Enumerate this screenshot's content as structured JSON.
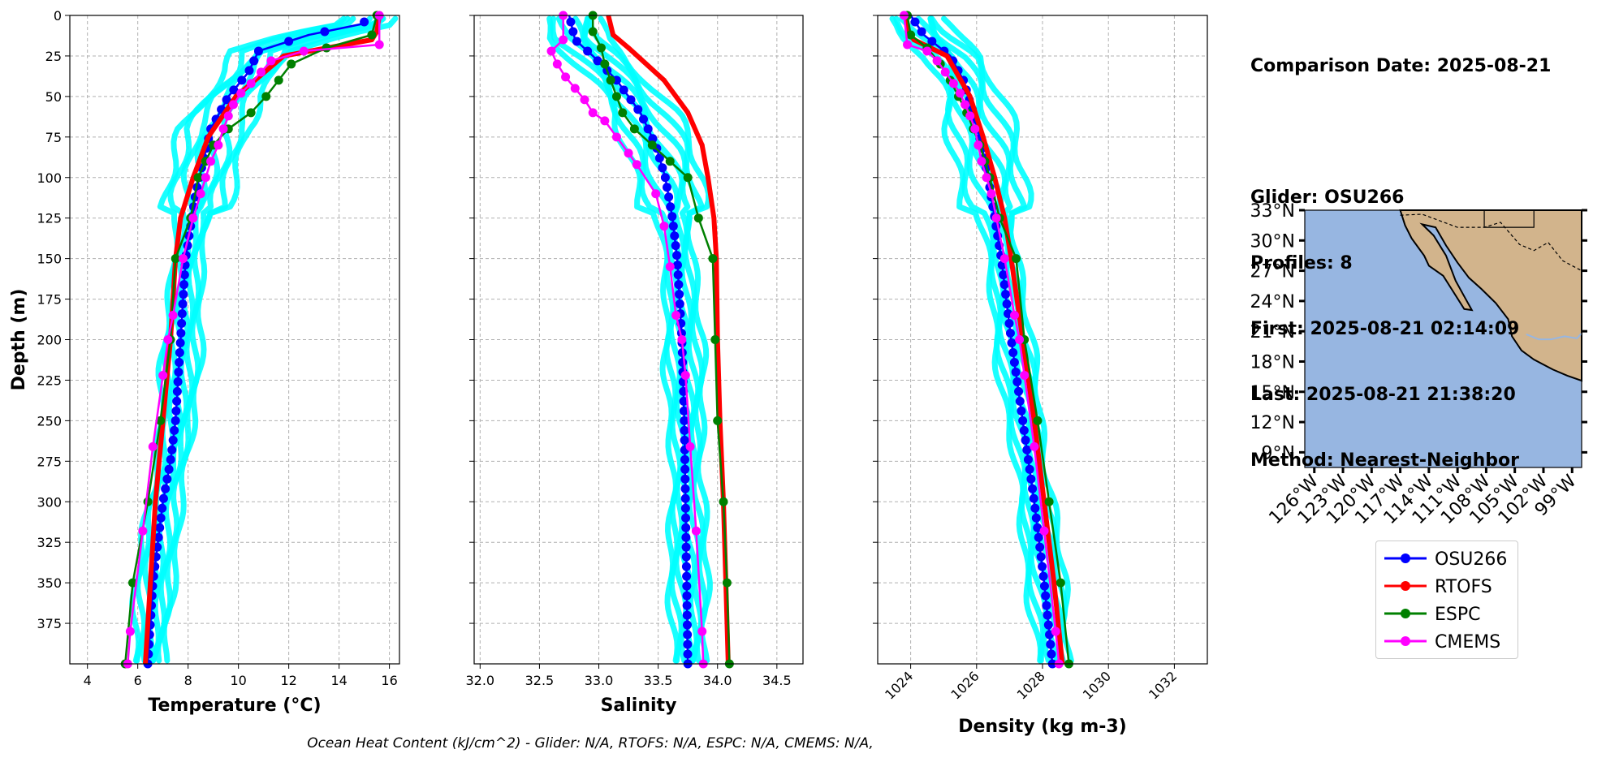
{
  "chart_data": [
    {
      "type": "line",
      "xlabel": "Temperature (°C)",
      "ylabel": "Depth (m)",
      "xlim": [
        3.3,
        16.4
      ],
      "ylim": [
        400,
        0
      ],
      "xticks": [
        "4",
        "6",
        "8",
        "10",
        "12",
        "14",
        "16"
      ],
      "yticks": [
        "0",
        "25",
        "50",
        "75",
        "100",
        "125",
        "150",
        "175",
        "200",
        "225",
        "250",
        "275",
        "300",
        "325",
        "350",
        "375"
      ],
      "series": [
        {
          "name": "OSU266",
          "color": "#0000ff",
          "depth": [
            5,
            12,
            22,
            35,
            50,
            70,
            90,
            110,
            130,
            150,
            175,
            200,
            225,
            250,
            275,
            300,
            325,
            350,
            375,
            400
          ],
          "values": [
            15.0,
            12.8,
            10.8,
            10.4,
            9.6,
            8.9,
            8.6,
            8.3,
            8.1,
            7.9,
            7.8,
            7.7,
            7.6,
            7.5,
            7.3,
            7.0,
            6.8,
            6.6,
            6.5,
            6.4
          ]
        },
        {
          "name": "RTOFS",
          "color": "#ff0000",
          "depth": [
            0,
            10,
            15,
            25,
            50,
            75,
            100,
            125,
            150,
            200,
            250,
            300,
            350,
            400
          ],
          "values": [
            15.6,
            15.5,
            15.3,
            11.8,
            9.9,
            8.8,
            8.2,
            7.7,
            7.5,
            7.3,
            7.0,
            6.7,
            6.5,
            6.3
          ]
        },
        {
          "name": "ESPC",
          "color": "#008000",
          "depth": [
            0,
            12,
            20,
            30,
            40,
            50,
            60,
            70,
            80,
            90,
            100,
            125,
            150,
            200,
            250,
            300,
            350,
            400
          ],
          "values": [
            15.5,
            15.3,
            13.5,
            12.1,
            11.6,
            11.1,
            10.5,
            9.6,
            9.0,
            8.7,
            8.4,
            8.1,
            7.5,
            7.3,
            6.9,
            6.4,
            5.8,
            5.5
          ]
        },
        {
          "name": "CMEMS",
          "color": "#ff00ff",
          "depth": [
            0,
            18,
            22,
            28,
            35,
            42,
            48,
            55,
            62,
            70,
            80,
            90,
            100,
            110,
            125,
            150,
            185,
            200,
            222,
            266,
            318,
            380,
            400
          ],
          "values": [
            15.6,
            15.6,
            12.6,
            11.3,
            10.9,
            10.5,
            10.1,
            9.8,
            9.6,
            9.4,
            9.2,
            8.9,
            8.7,
            8.5,
            8.2,
            7.8,
            7.4,
            7.2,
            7.0,
            6.6,
            6.2,
            5.7,
            5.6
          ]
        }
      ]
    },
    {
      "type": "line",
      "xlabel": "Salinity",
      "ylabel": "",
      "xlim": [
        31.95,
        34.72
      ],
      "ylim": [
        400,
        0
      ],
      "xticks": [
        "32.0",
        "32.5",
        "33.0",
        "33.5",
        "34.0",
        "34.5"
      ],
      "series": [
        {
          "name": "OSU266",
          "color": "#0000ff",
          "depth": [
            0,
            15,
            25,
            40,
            60,
            80,
            100,
            125,
            150,
            200,
            250,
            300,
            350,
            400
          ],
          "values": [
            32.75,
            32.8,
            32.95,
            33.15,
            33.35,
            33.48,
            33.56,
            33.62,
            33.66,
            33.7,
            33.72,
            33.73,
            33.74,
            33.75
          ]
        },
        {
          "name": "RTOFS",
          "color": "#ff0000",
          "depth": [
            0,
            12,
            20,
            40,
            60,
            80,
            100,
            125,
            150,
            200,
            250,
            300,
            350,
            400
          ],
          "values": [
            33.08,
            33.12,
            33.25,
            33.55,
            33.75,
            33.87,
            33.92,
            33.97,
            33.99,
            34.0,
            34.02,
            34.05,
            34.07,
            34.09
          ]
        },
        {
          "name": "ESPC",
          "color": "#008000",
          "depth": [
            0,
            10,
            20,
            30,
            40,
            50,
            60,
            70,
            80,
            90,
            100,
            125,
            150,
            200,
            250,
            300,
            350,
            400
          ],
          "values": [
            32.95,
            32.95,
            33.02,
            33.05,
            33.1,
            33.15,
            33.2,
            33.3,
            33.45,
            33.6,
            33.75,
            33.84,
            33.96,
            33.98,
            34.0,
            34.05,
            34.08,
            34.1
          ]
        },
        {
          "name": "CMEMS",
          "color": "#ff00ff",
          "depth": [
            0,
            15,
            22,
            30,
            38,
            45,
            52,
            60,
            65,
            75,
            85,
            92,
            110,
            130,
            155,
            185,
            200,
            222,
            266,
            318,
            380,
            400
          ],
          "values": [
            32.7,
            32.7,
            32.6,
            32.65,
            32.72,
            32.8,
            32.88,
            32.95,
            33.05,
            33.15,
            33.25,
            33.32,
            33.48,
            33.55,
            33.6,
            33.65,
            33.7,
            33.73,
            33.77,
            33.82,
            33.87,
            33.88
          ]
        }
      ]
    },
    {
      "type": "line",
      "xlabel": "Density (kg m-3)",
      "ylabel": "",
      "xlim": [
        1023.0,
        1033.0
      ],
      "ylim": [
        400,
        0
      ],
      "xticks": [
        "1024",
        "1026",
        "1028",
        "1030",
        "1032"
      ],
      "series": [
        {
          "name": "OSU266",
          "color": "#0000ff",
          "depth": [
            0,
            12,
            25,
            40,
            60,
            80,
            100,
            125,
            150,
            175,
            200,
            250,
            300,
            350,
            400
          ],
          "values": [
            1024.0,
            1024.4,
            1025.2,
            1025.6,
            1025.9,
            1026.15,
            1026.35,
            1026.55,
            1026.75,
            1026.9,
            1027.05,
            1027.4,
            1027.75,
            1028.05,
            1028.3
          ]
        },
        {
          "name": "RTOFS",
          "color": "#ff0000",
          "depth": [
            0,
            10,
            15,
            25,
            50,
            75,
            100,
            125,
            150,
            200,
            250,
            300,
            350,
            400
          ],
          "values": [
            1023.85,
            1023.9,
            1024.1,
            1025.1,
            1025.8,
            1026.2,
            1026.55,
            1026.85,
            1027.05,
            1027.4,
            1027.75,
            1028.05,
            1028.35,
            1028.6
          ]
        },
        {
          "name": "ESPC",
          "color": "#008000",
          "depth": [
            0,
            12,
            20,
            30,
            40,
            50,
            60,
            70,
            80,
            90,
            100,
            125,
            150,
            200,
            250,
            300,
            350,
            400
          ],
          "values": [
            1023.9,
            1024.0,
            1024.5,
            1024.9,
            1025.2,
            1025.45,
            1025.7,
            1025.9,
            1026.1,
            1026.25,
            1026.4,
            1026.7,
            1027.2,
            1027.45,
            1027.85,
            1028.2,
            1028.55,
            1028.8
          ]
        },
        {
          "name": "CMEMS",
          "color": "#ff00ff",
          "depth": [
            0,
            18,
            22,
            28,
            35,
            42,
            48,
            55,
            62,
            70,
            80,
            90,
            100,
            110,
            125,
            150,
            185,
            200,
            222,
            266,
            318,
            380,
            400
          ],
          "values": [
            1023.8,
            1023.9,
            1024.5,
            1024.8,
            1025.05,
            1025.3,
            1025.5,
            1025.65,
            1025.8,
            1025.95,
            1026.05,
            1026.15,
            1026.3,
            1026.45,
            1026.6,
            1026.85,
            1027.15,
            1027.3,
            1027.45,
            1027.75,
            1028.05,
            1028.4,
            1028.5
          ]
        }
      ]
    },
    {
      "type": "map",
      "lat_ticks": [
        "33°N",
        "30°N",
        "27°N",
        "24°N",
        "21°N",
        "18°N",
        "15°N",
        "12°N",
        "9°N"
      ],
      "lon_ticks": [
        "126°W",
        "123°W",
        "120°W",
        "117°W",
        "114°W",
        "111°W",
        "108°W",
        "105°W",
        "102°W",
        "99°W"
      ],
      "lat_range": [
        7.5,
        33
      ],
      "lon_range": [
        -127,
        -98
      ]
    }
  ],
  "glider_samples_color": "#00ffff",
  "info": {
    "comparison_date": "Comparison Date: 2025-08-21",
    "glider": "Glider: OSU266",
    "profiles": "Profiles: 8",
    "first": "First: 2025-08-21 02:14:09",
    "last": "Last: 2025-08-21 21:38:20",
    "method": "Method: Nearest-Neighbor"
  },
  "legend": [
    {
      "label": "OSU266",
      "color": "#0000ff"
    },
    {
      "label": "RTOFS",
      "color": "#ff0000"
    },
    {
      "label": "ESPC",
      "color": "#008000"
    },
    {
      "label": "CMEMS",
      "color": "#ff00ff"
    }
  ],
  "footer": "Ocean Heat Content (kJ/cm^2) - Glider: N/A,  RTOFS: N/A,  ESPC: N/A,  CMEMS: N/A,",
  "colors": {
    "ocean": "#97b6e1",
    "land": "#d2b48c",
    "grid": "#b0b0b0"
  }
}
